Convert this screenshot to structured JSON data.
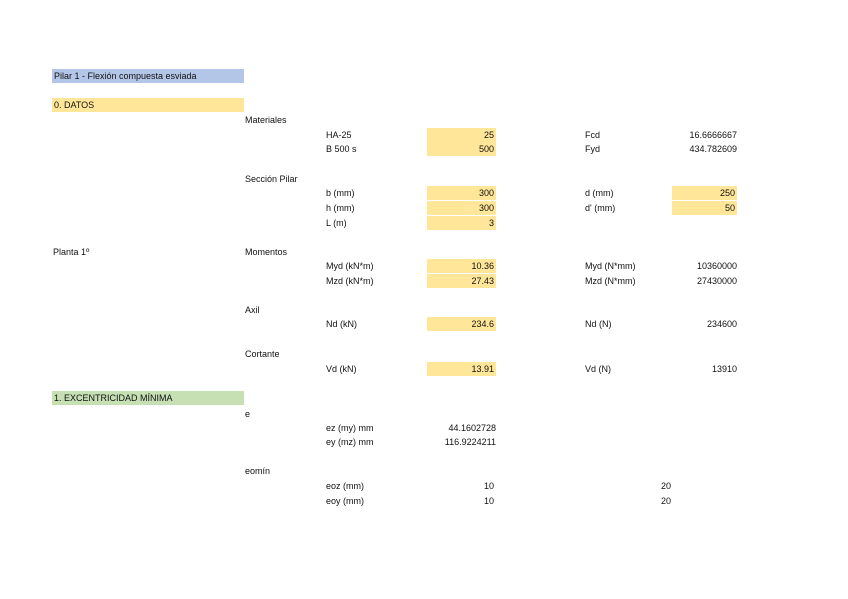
{
  "title": "Pilar 1 - Flexión compuesta esviada",
  "sections": {
    "datos": "0. DATOS",
    "excentricidad": "1. EXCENTRICIDAD MÍNIMA"
  },
  "groups": {
    "materiales": "Materiales",
    "seccion": "Sección Pilar",
    "planta": "Planta 1º",
    "momentos": "Momentos",
    "axil": "Axil",
    "cortante": "Cortante",
    "e": "e",
    "eomin": "eomín"
  },
  "materiales": {
    "ha_label": "HA-25",
    "ha_value": "25",
    "b_label": "B 500 s",
    "b_value": "500",
    "fcd_label": "Fcd",
    "fcd_value": "16.6666667",
    "fyd_label": "Fyd",
    "fyd_value": "434.782609"
  },
  "seccion": {
    "b_label": "b (mm)",
    "b_value": "300",
    "h_label": "h (mm)",
    "h_value": "300",
    "l_label": "L (m)",
    "l_value": "3",
    "d_label": "d (mm)",
    "d_value": "250",
    "dp_label": "d' (mm)",
    "dp_value": "50"
  },
  "momentos": {
    "myd_label": "Myd (kN*m)",
    "myd_value": "10.36",
    "mzd_label": "Mzd (kN*m)",
    "mzd_value": "27.43",
    "mydn_label": "Myd (N*mm)",
    "mydn_value": "10360000",
    "mzdn_label": "Mzd (N*mm)",
    "mzdn_value": "27430000"
  },
  "axil": {
    "nd_label": "Nd (kN)",
    "nd_value": "234.6",
    "ndn_label": "Nd (N)",
    "ndn_value": "234600"
  },
  "cortante": {
    "vd_label": "Vd (kN)",
    "vd_value": "13.91",
    "vdn_label": "Vd (N)",
    "vdn_value": "13910"
  },
  "excentricidad": {
    "ez_label": "ez (my) mm",
    "ez_value": "44.1602728",
    "ey_label": "ey (mz) mm",
    "ey_value": "116.9224211"
  },
  "eomin": {
    "eoz_label": "eoz (mm)",
    "eoz_value": "10",
    "eoz_value2": "20",
    "eoy_label": "eoy (mm)",
    "eoy_value": "10",
    "eoy_value2": "20"
  }
}
